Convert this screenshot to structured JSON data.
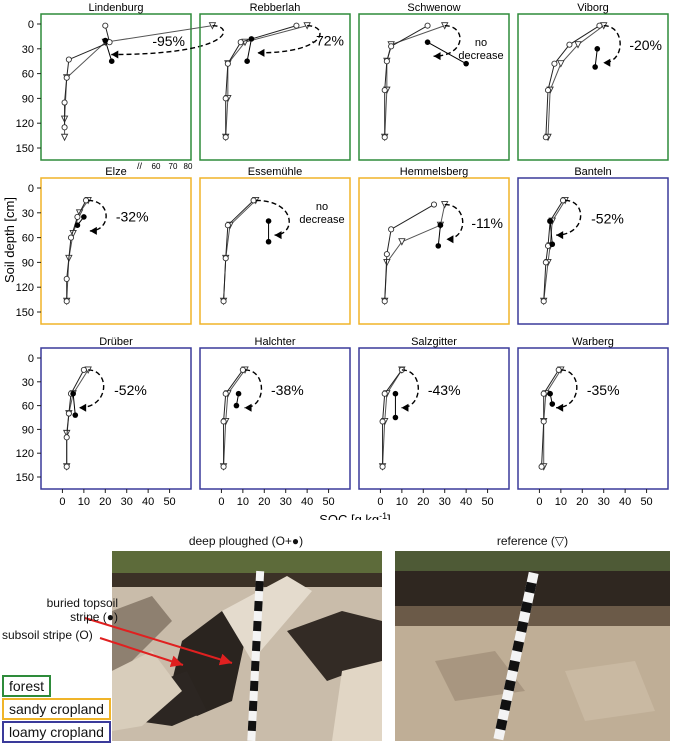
{
  "figure": {
    "ylabel": "Soil depth [cm]",
    "xlabel": "SOC [g kg",
    "xlabel_sup": "-1",
    "xlabel_end": "]",
    "colors": {
      "forest": "#2e8b3a",
      "sandy": "#f0b429",
      "loamy": "#3a3a9a"
    }
  },
  "chart_data": {
    "type": "line",
    "ylim": [
      0,
      160
    ],
    "yticks": [
      0,
      30,
      60,
      90,
      120,
      150
    ],
    "xlim": [
      -10,
      60
    ],
    "xticks": [
      0,
      10,
      20,
      30,
      40,
      50
    ],
    "xticks_broken": [
      60,
      70,
      80
    ],
    "panels": [
      {
        "name": "Lindenburg",
        "land_use": "forest",
        "change": "-95%",
        "broken_axis": true,
        "ref": [
          [
            70,
            2
          ],
          [
            20,
            22
          ],
          [
            2,
            65
          ],
          [
            1,
            115
          ],
          [
            1,
            137
          ]
        ],
        "plough": [
          [
            20,
            2
          ],
          [
            22,
            22
          ],
          [
            3,
            43
          ],
          [
            2,
            65
          ],
          [
            1,
            95
          ],
          [
            1,
            125
          ]
        ],
        "buried": [
          [
            20,
            20
          ],
          [
            23,
            45
          ]
        ]
      },
      {
        "name": "Rebberlah",
        "land_use": "forest",
        "change": "-72%",
        "ref": [
          [
            40,
            2
          ],
          [
            11,
            22
          ],
          [
            3,
            48
          ],
          [
            3,
            90
          ],
          [
            2,
            137
          ]
        ],
        "plough": [
          [
            35,
            2
          ],
          [
            9,
            22
          ],
          [
            3,
            48
          ],
          [
            2,
            90
          ],
          [
            2,
            137
          ]
        ],
        "buried": [
          [
            14,
            18
          ],
          [
            12,
            45
          ]
        ]
      },
      {
        "name": "Schwenow",
        "land_use": "forest",
        "change": "no decrease",
        "change_line2": "",
        "ref": [
          [
            30,
            2
          ],
          [
            5,
            25
          ],
          [
            3,
            45
          ],
          [
            3,
            80
          ],
          [
            2,
            137
          ]
        ],
        "plough": [
          [
            22,
            2
          ],
          [
            5,
            27
          ],
          [
            3,
            45
          ],
          [
            2,
            80
          ],
          [
            2,
            137
          ]
        ],
        "buried": [
          [
            22,
            22
          ],
          [
            40,
            48
          ]
        ]
      },
      {
        "name": "Viborg",
        "land_use": "forest",
        "change": "-20%",
        "ref": [
          [
            30,
            2
          ],
          [
            18,
            25
          ],
          [
            10,
            48
          ],
          [
            5,
            80
          ],
          [
            4,
            137
          ]
        ],
        "plough": [
          [
            28,
            2
          ],
          [
            14,
            25
          ],
          [
            7,
            48
          ],
          [
            4,
            80
          ],
          [
            3,
            137
          ]
        ],
        "buried": [
          [
            27,
            30
          ],
          [
            26,
            52
          ]
        ]
      },
      {
        "name": "Elze",
        "land_use": "sandy",
        "change": "-32%",
        "ref": [
          [
            12,
            15
          ],
          [
            8,
            30
          ],
          [
            5,
            55
          ],
          [
            3,
            85
          ],
          [
            2,
            137
          ]
        ],
        "plough": [
          [
            11,
            15
          ],
          [
            7,
            35
          ],
          [
            4,
            60
          ],
          [
            2,
            110
          ],
          [
            2,
            137
          ]
        ],
        "buried": [
          [
            10,
            35
          ],
          [
            7,
            45
          ]
        ]
      },
      {
        "name": "Essemühle",
        "land_use": "sandy",
        "change": "no decrease",
        "change_line2": "",
        "ref": [
          [
            16,
            15
          ],
          [
            4,
            45
          ],
          [
            2,
            85
          ],
          [
            1,
            137
          ]
        ],
        "plough": [
          [
            15,
            15
          ],
          [
            3,
            45
          ],
          [
            2,
            85
          ],
          [
            1,
            137
          ]
        ],
        "buried": [
          [
            22,
            40
          ],
          [
            22,
            65
          ]
        ]
      },
      {
        "name": "Hemmelsberg",
        "land_use": "sandy",
        "change": "-11%",
        "ref": [
          [
            30,
            20
          ],
          [
            28,
            45
          ],
          [
            10,
            65
          ],
          [
            3,
            90
          ],
          [
            2,
            137
          ]
        ],
        "plough": [
          [
            25,
            20
          ],
          [
            5,
            50
          ],
          [
            3,
            80
          ],
          [
            2,
            137
          ]
        ],
        "buried": [
          [
            28,
            45
          ],
          [
            27,
            70
          ]
        ]
      },
      {
        "name": "Banteln",
        "land_use": "loamy",
        "change": "-52%",
        "ref": [
          [
            12,
            15
          ],
          [
            6,
            40
          ],
          [
            5,
            70
          ],
          [
            4,
            90
          ],
          [
            2,
            137
          ]
        ],
        "plough": [
          [
            11,
            15
          ],
          [
            5,
            40
          ],
          [
            4,
            70
          ],
          [
            3,
            90
          ],
          [
            2,
            137
          ]
        ],
        "buried": [
          [
            5,
            40
          ],
          [
            6,
            68
          ]
        ]
      },
      {
        "name": "Drüber",
        "land_use": "loamy",
        "change": "-52%",
        "ref": [
          [
            12,
            15
          ],
          [
            5,
            45
          ],
          [
            3,
            70
          ],
          [
            2,
            95
          ],
          [
            2,
            137
          ]
        ],
        "plough": [
          [
            10,
            15
          ],
          [
            4,
            45
          ],
          [
            3,
            70
          ],
          [
            2,
            100
          ],
          [
            2,
            137
          ]
        ],
        "buried": [
          [
            5,
            45
          ],
          [
            6,
            72
          ]
        ]
      },
      {
        "name": "Halchter",
        "land_use": "loamy",
        "change": "-38%",
        "ref": [
          [
            11,
            15
          ],
          [
            3,
            45
          ],
          [
            2,
            80
          ],
          [
            1,
            137
          ]
        ],
        "plough": [
          [
            10,
            15
          ],
          [
            2,
            45
          ],
          [
            1,
            80
          ],
          [
            1,
            137
          ]
        ],
        "buried": [
          [
            8,
            45
          ],
          [
            7,
            60
          ]
        ]
      },
      {
        "name": "Salzgitter",
        "land_use": "loamy",
        "change": "-43%",
        "ref": [
          [
            10,
            15
          ],
          [
            3,
            45
          ],
          [
            2,
            80
          ],
          [
            1,
            137
          ]
        ],
        "plough": [
          [
            10,
            15
          ],
          [
            2,
            45
          ],
          [
            1,
            80
          ],
          [
            1,
            137
          ]
        ],
        "buried": [
          [
            7,
            45
          ],
          [
            7,
            75
          ]
        ]
      },
      {
        "name": "Warberg",
        "land_use": "loamy",
        "change": "-35%",
        "ref": [
          [
            10,
            15
          ],
          [
            3,
            45
          ],
          [
            2,
            80
          ],
          [
            2,
            137
          ]
        ],
        "plough": [
          [
            9,
            15
          ],
          [
            2,
            45
          ],
          [
            2,
            80
          ],
          [
            1,
            137
          ]
        ],
        "buried": [
          [
            5,
            45
          ],
          [
            6,
            58
          ]
        ]
      }
    ]
  },
  "photos": {
    "left_title": "deep ploughed (O+●)",
    "right_title": "reference (▽)",
    "label_buried_1": "buried topsoil",
    "label_buried_2": "stripe (●)",
    "label_subsoil": "subsoil stripe (O)"
  },
  "legend": {
    "forest": "forest",
    "sandy": "sandy cropland",
    "loamy": "loamy cropland"
  }
}
